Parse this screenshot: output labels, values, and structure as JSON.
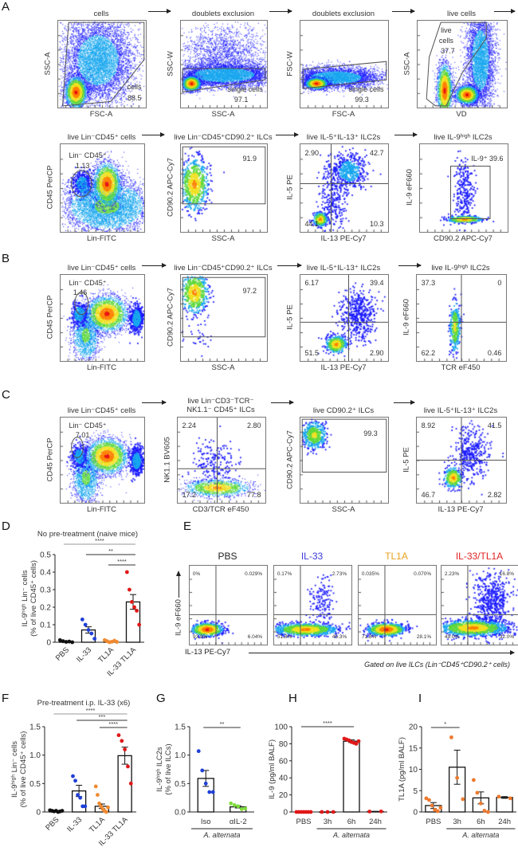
{
  "panel_letters": [
    "A",
    "B",
    "C",
    "D",
    "E",
    "F",
    "G",
    "H",
    "I"
  ],
  "panelA": {
    "plots": [
      {
        "title": "cells",
        "xlabel": "FSC-A",
        "ylabel": "SSC-A",
        "gate_labels": [
          "cells",
          "88.5"
        ]
      },
      {
        "title": "doublets exclusion",
        "xlabel": "SSC-A",
        "ylabel": "SSC-W",
        "gate_labels": [
          "single cells",
          "97.1"
        ]
      },
      {
        "title": "doublets exclusion",
        "xlabel": "FSC-A",
        "ylabel": "FSC-W",
        "gate_labels": [
          "single cells",
          "99.3"
        ]
      },
      {
        "title": "live cells",
        "xlabel": "VD",
        "ylabel": "SSC-A",
        "gate_labels": [
          "live",
          "cells",
          "37.7"
        ]
      },
      {
        "title": "live Lin⁻CD45⁺ cells",
        "xlabel": "Lin-FITC",
        "ylabel": "CD45 PerCP",
        "gate_labels": [
          "Lin⁻ CD45⁺",
          "1.13"
        ]
      },
      {
        "title": "live Lin⁻CD45⁺CD90.2⁺ ILCs",
        "xlabel": "SSC-A",
        "ylabel": "CD90.2 APC-Cy7",
        "gate_labels": [
          "91.9"
        ]
      },
      {
        "title": "live IL-5⁺IL-13⁺ ILC2s",
        "xlabel": "IL-13 PE-Cy7",
        "ylabel": "IL-5 PE",
        "gate_labels": [
          "2.90",
          "42.7",
          "44.1",
          "10.3"
        ]
      },
      {
        "title": "live IL-9ʰⁱᵍʰ ILC2s",
        "xlabel": "CD90.2 APC-Cy7",
        "ylabel": "IL-9 eF660",
        "gate_labels": [
          "IL-9⁺  39.6"
        ]
      }
    ]
  },
  "panelB": {
    "plots": [
      {
        "title": "live Lin⁻CD45⁺ cells",
        "xlabel": "Lin-FITC",
        "ylabel": "CD45 PerCP",
        "gate_labels": [
          "Lin⁻ CD45⁺",
          "1.46"
        ]
      },
      {
        "title": "live Lin⁻CD45⁺CD90.2⁺ ILCs",
        "xlabel": "SSC-A",
        "ylabel": "CD90.2 APC-Cy7",
        "gate_labels": [
          "97.2"
        ]
      },
      {
        "title": "live IL-5⁺IL-13⁺ ILC2s",
        "xlabel": "IL-13 PE-Cy7",
        "ylabel": "IL-5 PE",
        "gate_labels": [
          "6.17",
          "39.4",
          "51.5",
          "2.90"
        ]
      },
      {
        "title": "live IL-9ʰⁱᵍʰ ILC2s",
        "xlabel": "TCR eF450",
        "ylabel": "IL-9 eF660",
        "gate_labels": [
          "37.3",
          "0",
          "62.2",
          "0.46"
        ]
      }
    ]
  },
  "panelC": {
    "plots": [
      {
        "title": "live Lin⁻CD45⁺ cells",
        "xlabel": "Lin-FITC",
        "ylabel": "CD45 PerCP",
        "gate_labels": [
          "Lin⁻ CD45⁺",
          "7.01"
        ]
      },
      {
        "title": "live Lin⁻CD3⁻TCR⁻\nNK1.1⁻ CD45⁺ ILCs",
        "xlabel": "CD3/TCR eF450",
        "ylabel": "NK1.1 BV605",
        "gate_labels": [
          "2.24",
          "2.80",
          "17.2",
          "77.8"
        ]
      },
      {
        "title": "live CD90.2⁺ ILCs",
        "xlabel": "SSC-A",
        "ylabel": "CD90.2 APC-Cy7",
        "gate_labels": [
          "99.3"
        ]
      },
      {
        "title": "live IL-5⁺IL-13⁺ ILC2s",
        "xlabel": "IL-13 PE-Cy7",
        "ylabel": "IL-5 PE",
        "gate_labels": [
          "8.92",
          "41.5",
          "46.7",
          "2.82"
        ]
      }
    ]
  },
  "panelE": {
    "ylabel": "IL-9 eF660",
    "xlabel": "IL-13 PE-Cy7",
    "footnote": "Gated on live ILCs (Lin⁻CD45⁺CD90.2⁺ cells)",
    "plots": [
      {
        "title": "PBS",
        "color": "#222222",
        "gate_labels": [
          "0%",
          "0.029%",
          "93.9%",
          "6.04%"
        ]
      },
      {
        "title": "IL-33",
        "color": "#3b3bd8",
        "gate_labels": [
          "0.17%",
          "2.73%",
          "51.8%",
          "45.3%"
        ]
      },
      {
        "title": "TL1A",
        "color": "#e6a21e",
        "gate_labels": [
          "0.035%",
          "0.070%",
          "71.8%",
          "28.1%"
        ]
      },
      {
        "title": "IL-33/TL1A",
        "color": "#e02424",
        "gate_labels": [
          "2.23%",
          "16.8%",
          "49.0%",
          "32.0%"
        ]
      }
    ]
  },
  "chart_data": [
    {
      "panel": "D",
      "type": "bar",
      "title": "No pre-treatment (naive mice)",
      "ylabel": [
        "IL-9ʰⁱᵍʰ Lin⁻ cells",
        "(% of live CD45⁺ cells)"
      ],
      "ylim": [
        0,
        0.5
      ],
      "yticks": [
        "0",
        "0.1",
        "0.2",
        "0.3",
        "0.4",
        "0.5"
      ],
      "ytick_values": [
        0,
        0.1,
        0.2,
        0.3,
        0.4,
        0.5
      ],
      "categories": [
        "PBS",
        "IL-33",
        "TL1A",
        "IL-33 TL1A"
      ],
      "xlabel_rotated": true,
      "colors": [
        "#111111",
        "#1f3fd6",
        "#f08a30",
        "#e01818"
      ],
      "means": [
        0.005,
        0.07,
        0.005,
        0.23
      ],
      "sem": [
        0.002,
        0.018,
        0.002,
        0.042
      ],
      "points": [
        [
          0.012,
          0.006,
          0.002,
          0.004,
          0.0
        ],
        [
          0.13,
          0.1,
          0.07,
          0.05,
          0.02
        ],
        [
          0.012,
          0.006,
          0.0,
          0.003,
          0.009,
          0.002
        ],
        [
          0.4,
          0.3,
          0.23,
          0.2,
          0.18,
          0.1
        ]
      ],
      "significance": [
        {
          "from": "PBS",
          "to": "IL-33 TL1A",
          "label": "****"
        },
        {
          "from": "IL-33",
          "to": "IL-33 TL1A",
          "label": "**"
        },
        {
          "from": "TL1A",
          "to": "IL-33 TL1A",
          "label": "****"
        }
      ]
    },
    {
      "panel": "F",
      "type": "bar",
      "title": "Pre-treatment i.p. IL-33 (x6)",
      "ylabel": [
        "IL-9ʰⁱᵍʰ Lin⁻ cells",
        "(% of live CD45⁺ cells)"
      ],
      "ylim": [
        0,
        1.5
      ],
      "yticks": [
        "0",
        "0.5",
        "1.0",
        "1.5"
      ],
      "ytick_values": [
        0,
        0.5,
        1.0,
        1.5
      ],
      "categories": [
        "PBS",
        "IL-33",
        "TL1A",
        "IL-33 TL1A"
      ],
      "xlabel_rotated": true,
      "colors": [
        "#111111",
        "#1f3fd6",
        "#f08a30",
        "#e01818"
      ],
      "means": [
        0.02,
        0.37,
        0.1,
        0.99
      ],
      "sem": [
        0.005,
        0.1,
        0.04,
        0.15
      ],
      "points": [
        [
          0.03,
          0.02,
          0.01,
          0.02,
          0.0,
          0.01,
          0.02
        ],
        [
          0.63,
          0.55,
          0.3,
          0.25,
          0.1,
          0.1
        ],
        [
          0.45,
          0.3,
          0.15,
          0.1,
          0.05,
          0.02,
          0.0,
          0.08
        ],
        [
          1.35,
          1.25,
          1.1,
          0.8,
          0.5
        ]
      ],
      "significance": [
        {
          "from": "PBS",
          "to": "IL-33 TL1A",
          "label": "****"
        },
        {
          "from": "IL-33",
          "to": "IL-33 TL1A",
          "label": "***"
        },
        {
          "from": "TL1A",
          "to": "IL-33 TL1A",
          "label": "****"
        }
      ]
    },
    {
      "panel": "G",
      "type": "bar",
      "ylabel": [
        "IL-9ʰⁱᵍʰ ILC2s",
        "(% of live ILCs)"
      ],
      "ylim": [
        0,
        1.5
      ],
      "yticks": [
        "0.0",
        "0.5",
        "1.0",
        "1.5"
      ],
      "ytick_values": [
        0,
        0.5,
        1.0,
        1.5
      ],
      "categories": [
        "Iso",
        "αIL-2"
      ],
      "group_label": "A. alternata",
      "group_from": 0,
      "colors": [
        "#1f3fd6",
        "#7ddc3a"
      ],
      "means": [
        0.59,
        0.09
      ],
      "sem": [
        0.14,
        0.02
      ],
      "points": [
        [
          1.07,
          0.73,
          0.5,
          0.35,
          0.35
        ],
        [
          0.15,
          0.12,
          0.1,
          0.05,
          0.06
        ]
      ],
      "significance": [
        {
          "from": "Iso",
          "to": "αIL-2",
          "label": "**"
        }
      ]
    },
    {
      "panel": "H",
      "type": "bar",
      "ylabel": [
        "IL-9 (pg/ml BALF)"
      ],
      "ylim": [
        0,
        100
      ],
      "yticks": [
        "0",
        "20",
        "40",
        "60",
        "80",
        "100"
      ],
      "ytick_values": [
        0,
        20,
        40,
        60,
        80,
        100
      ],
      "categories": [
        "PBS",
        "3h",
        "6h",
        "24h"
      ],
      "group_label": "A. alternata",
      "group_from": 1,
      "colors": [
        "#e01818",
        "#e01818",
        "#e01818",
        "#e01818"
      ],
      "means": [
        0,
        0,
        83,
        0.5
      ],
      "sem": [
        0,
        0,
        1.5,
        0.2
      ],
      "points": [
        [
          0,
          0,
          0,
          0,
          0,
          0,
          0
        ],
        [
          0,
          0,
          0
        ],
        [
          86,
          85,
          84,
          82,
          81,
          80,
          83
        ],
        [
          0.5,
          0.6
        ]
      ],
      "significance": [
        {
          "from": "PBS",
          "to": "6h",
          "label": "****"
        }
      ]
    },
    {
      "panel": "I",
      "type": "bar",
      "ylabel": [
        "TL1A (pg/ml BALF)"
      ],
      "ylim": [
        0,
        20
      ],
      "yticks": [
        "0",
        "5",
        "10",
        "15",
        "20"
      ],
      "ytick_values": [
        0,
        5,
        10,
        15,
        20
      ],
      "categories": [
        "PBS",
        "3h",
        "6h",
        "24h"
      ],
      "group_label": "A. alternata",
      "group_from": 1,
      "colors": [
        "#ee7a30",
        "#ee7a30",
        "#ee7a30",
        "#ee7a30"
      ],
      "means": [
        1.5,
        10.5,
        3.3,
        3.4
      ],
      "sem": [
        0.7,
        4.0,
        1.4,
        0.2
      ],
      "points": [
        [
          3.2,
          2.8,
          1.5,
          0.5,
          0.2,
          1.0
        ],
        [
          17.5,
          8,
          3
        ],
        [
          7.5,
          4.5,
          2,
          0.3,
          0
        ],
        [
          3.6,
          3.2
        ]
      ],
      "significance": [
        {
          "from": "PBS",
          "to": "3h",
          "label": "*"
        }
      ]
    }
  ]
}
